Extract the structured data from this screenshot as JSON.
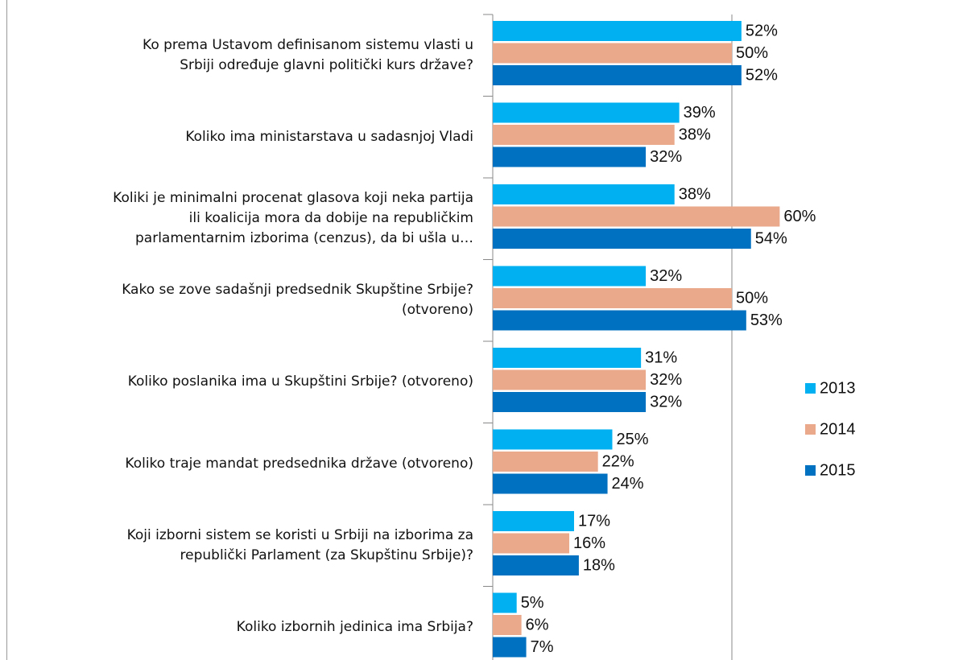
{
  "chart_data": {
    "type": "hbar",
    "categories": [
      "Ko prema Ustavom definisanom sistemu vlasti u\nSrbiji određuje glavni politički kurs države?",
      "Koliko ima ministarstava u sadasnjoj Vladi",
      "Koliki je minimalni procenat glasova koji neka partija\nili koalicija mora da dobije na republičkim\nparlamentarnim izborima (cenzus), da bi ušla u…",
      "Kako se zove sadašnji predsednik Skupštine Srbije?\n(otvoreno)",
      "Koliko poslanika ima u Skupštini Srbije? (otvoreno)",
      "Koliko traje mandat predsednika države (otvoreno)",
      "Koji izborni sistem se koristi u Srbiji na izborima za\nrepublički Parlament (za Skupštinu Srbije)?",
      "Koliko izbornih jedinica ima Srbija?"
    ],
    "series": [
      {
        "name": "2013",
        "color": "#00b0f0",
        "values": [
          52,
          39,
          38,
          32,
          31,
          25,
          17,
          5
        ],
        "value_labels": [
          "52%",
          "39%",
          "38%",
          "32%",
          "31%",
          "25%",
          "17%",
          "5%"
        ]
      },
      {
        "name": "2014",
        "color": "#e9a98a",
        "values": [
          50,
          38,
          60,
          50,
          32,
          22,
          16,
          6
        ],
        "value_labels": [
          "50%",
          "38%",
          "60%",
          "50%",
          "32%",
          "22%",
          "16%",
          "6%"
        ]
      },
      {
        "name": "2015",
        "color": "#0070c0",
        "values": [
          52,
          32,
          54,
          53,
          32,
          24,
          18,
          7
        ],
        "value_labels": [
          "52%",
          "32%",
          "54%",
          "53%",
          "32%",
          "24%",
          "18%",
          "7%"
        ]
      }
    ],
    "xlim": [
      0,
      100
    ],
    "xticks": [
      50
    ],
    "grid": true,
    "tick_labels": false,
    "legend": "right"
  }
}
